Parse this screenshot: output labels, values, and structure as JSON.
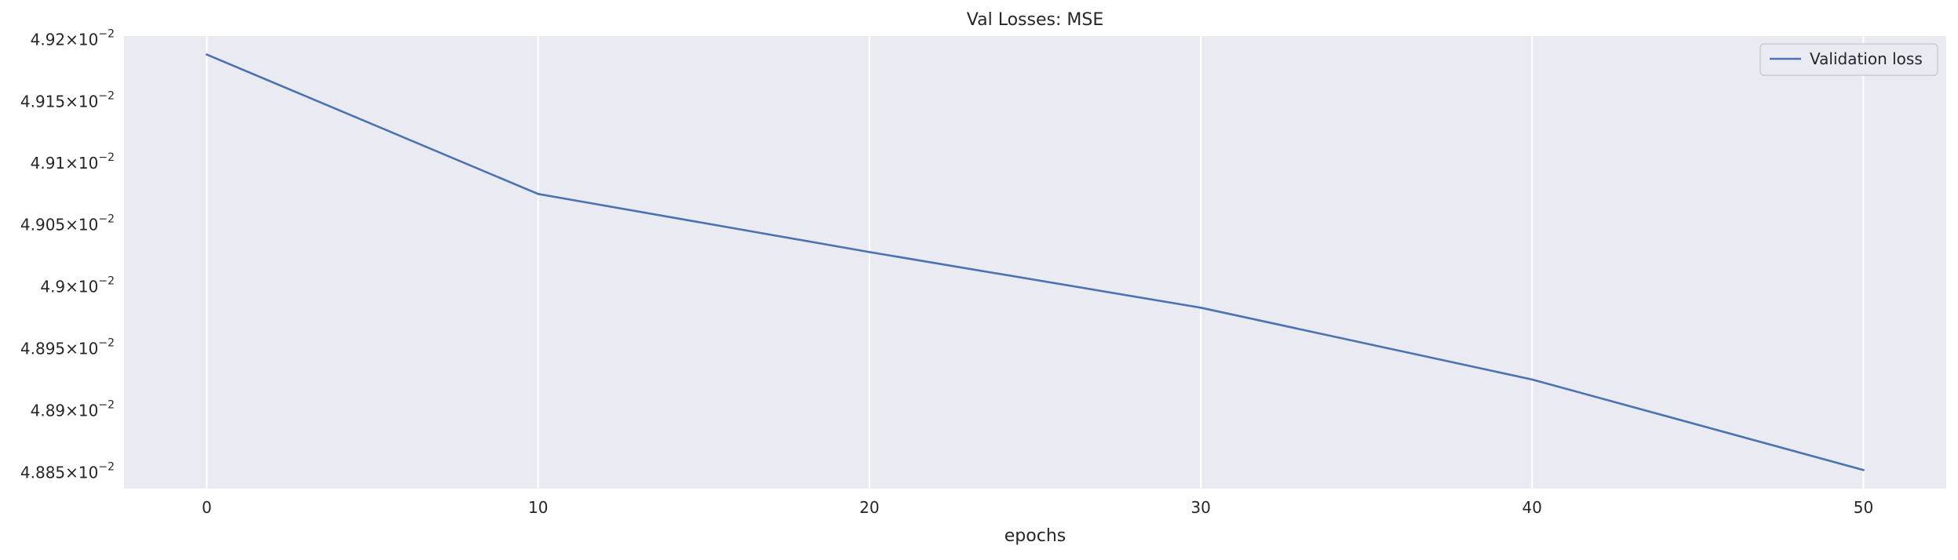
{
  "chart_data": {
    "type": "line",
    "title": "Val Losses:  MSE",
    "xlabel": "epochs",
    "ylabel": "",
    "x": [
      0,
      10,
      20,
      30,
      40,
      50
    ],
    "series": [
      {
        "name": "Validation loss",
        "values": [
          0.049188,
          0.049075,
          0.049028,
          0.048983,
          0.048925,
          0.048852
        ],
        "color": "#4c72b0"
      }
    ],
    "xlim": [
      -2.5,
      52.5
    ],
    "ylim": [
      0.048837,
      0.049203
    ],
    "xticks": [
      0,
      10,
      20,
      30,
      40,
      50
    ],
    "xtick_labels": [
      "0",
      "10",
      "20",
      "30",
      "40",
      "50"
    ],
    "yticks": [
      0.0492,
      0.04915,
      0.0491,
      0.04905,
      0.049,
      0.04895,
      0.0489,
      0.04885
    ],
    "ytick_mantissas": [
      "4.92",
      "4.915",
      "4.91",
      "4.905",
      "4.9",
      "4.895",
      "4.89",
      "4.885"
    ],
    "ytick_base": "10",
    "ytick_exponent": "−2",
    "y_scale": "log",
    "grid": "vertical",
    "legend_position": "top-right",
    "colors": {
      "plot_background": "#eaeaf2",
      "grid": "#ffffff",
      "page_background": "#ffffff"
    }
  }
}
